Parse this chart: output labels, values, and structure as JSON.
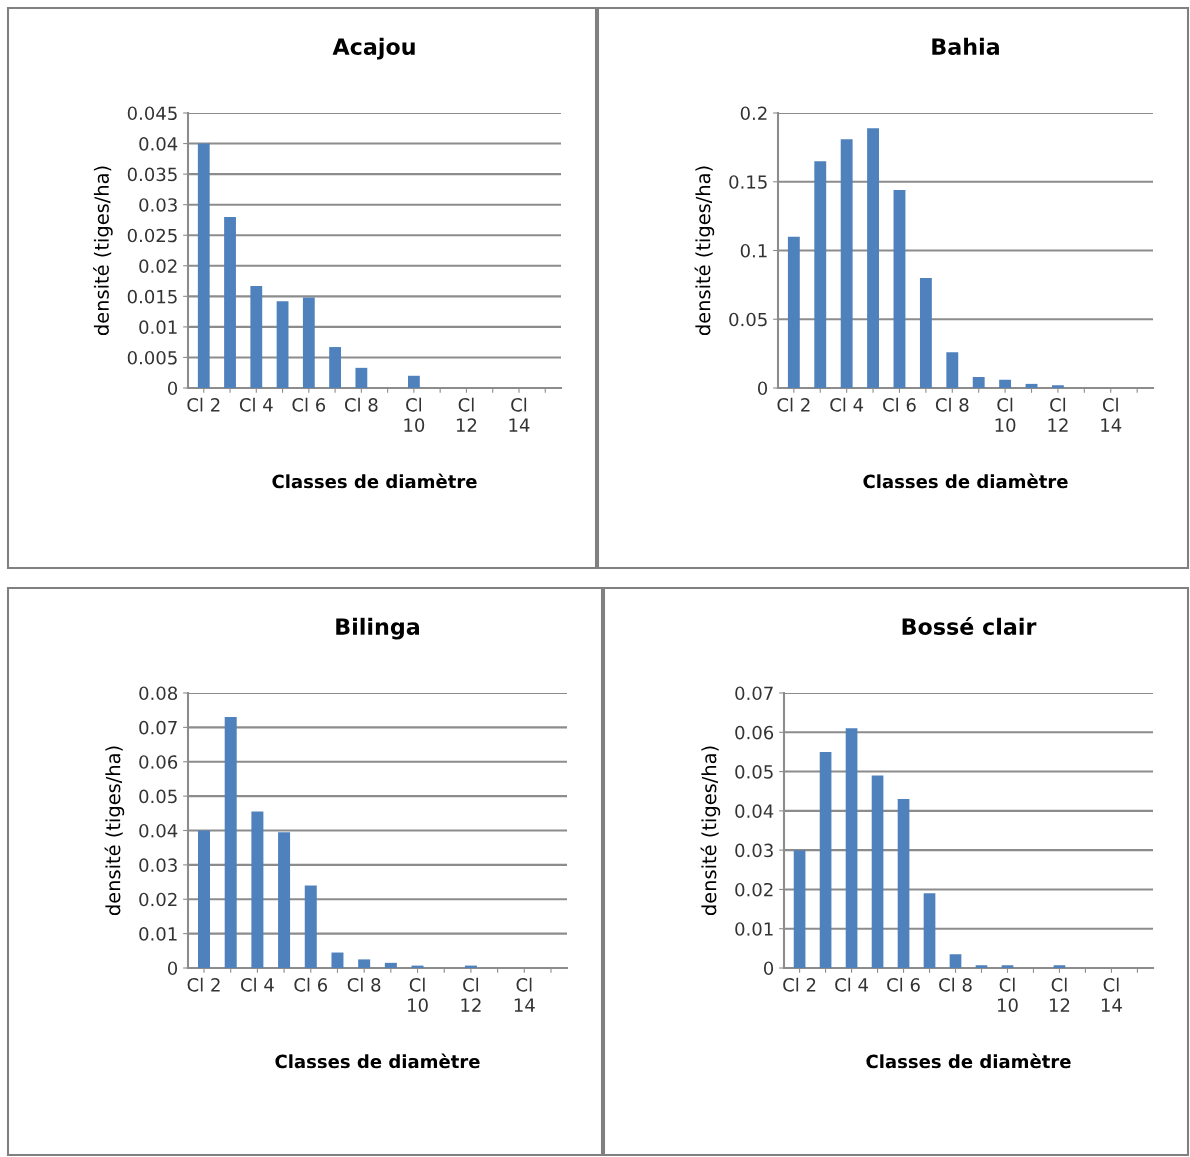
{
  "chart_data": [
    {
      "type": "bar",
      "title": "Acajou",
      "xlabel": "Classes de diamètre",
      "ylabel": "densité (tiges/ha)",
      "categories": [
        "Cl 2",
        null,
        "Cl 4",
        null,
        "Cl 6",
        null,
        "Cl 8",
        null,
        "Cl 10",
        null,
        "Cl 12",
        null,
        "Cl 14",
        null
      ],
      "color": "#4f81bd",
      "values": [
        0.04,
        0.028,
        0.0167,
        0.0142,
        0.0148,
        0.0067,
        0.0033,
        0,
        0.002,
        0,
        0,
        0,
        0,
        0
      ],
      "ylim": [
        0,
        0.045
      ],
      "yticks": [
        0,
        0.005,
        0.01,
        0.015,
        0.02,
        0.025,
        0.03,
        0.035,
        0.04,
        0.045
      ],
      "grid": "y",
      "legend": false
    },
    {
      "type": "bar",
      "title": "Bahia",
      "xlabel": "Classes de diamètre",
      "ylabel": "densité (tiges/ha)",
      "categories": [
        "Cl 2",
        null,
        "Cl 4",
        null,
        "Cl 6",
        null,
        "Cl 8",
        null,
        "Cl 10",
        null,
        "Cl 12",
        null,
        "Cl 14",
        null
      ],
      "color": "#4f81bd",
      "values": [
        0.11,
        0.165,
        0.181,
        0.189,
        0.144,
        0.08,
        0.026,
        0.008,
        0.006,
        0.003,
        0.002,
        0,
        0,
        0
      ],
      "ylim": [
        0,
        0.2
      ],
      "yticks": [
        0,
        0.05,
        0.1,
        0.15,
        0.2
      ],
      "grid": "y",
      "legend": false
    },
    {
      "type": "bar",
      "title": "Bilinga",
      "xlabel": "Classes de diamètre",
      "ylabel": "densité (tiges/ha)",
      "categories": [
        "Cl 2",
        null,
        "Cl 4",
        null,
        "Cl 6",
        null,
        "Cl 8",
        null,
        "Cl 10",
        null,
        "Cl 12",
        null,
        "Cl 14",
        null
      ],
      "color": "#4f81bd",
      "values": [
        0.04,
        0.073,
        0.0455,
        0.0395,
        0.024,
        0.0045,
        0.0025,
        0.0015,
        0.0007,
        0,
        0.0007,
        0,
        0,
        0
      ],
      "ylim": [
        0,
        0.08
      ],
      "yticks": [
        0,
        0.01,
        0.02,
        0.03,
        0.04,
        0.05,
        0.06,
        0.07,
        0.08
      ],
      "grid": "y",
      "legend": false
    },
    {
      "type": "bar",
      "title": "Bossé clair",
      "xlabel": "Classes de diamètre",
      "ylabel": "densité (tiges/ha)",
      "categories": [
        "Cl 2",
        null,
        "Cl 4",
        null,
        "Cl 6",
        null,
        "Cl 8",
        null,
        "Cl 10",
        null,
        "Cl 12",
        null,
        "Cl 14",
        null
      ],
      "color": "#4f81bd",
      "values": [
        0.03,
        0.055,
        0.061,
        0.049,
        0.043,
        0.019,
        0.0035,
        0.0007,
        0.0007,
        0,
        0.0007,
        0,
        0,
        0
      ],
      "ylim": [
        0,
        0.07
      ],
      "yticks": [
        0,
        0.01,
        0.02,
        0.03,
        0.04,
        0.05,
        0.06,
        0.07
      ],
      "grid": "y",
      "legend": false
    }
  ]
}
